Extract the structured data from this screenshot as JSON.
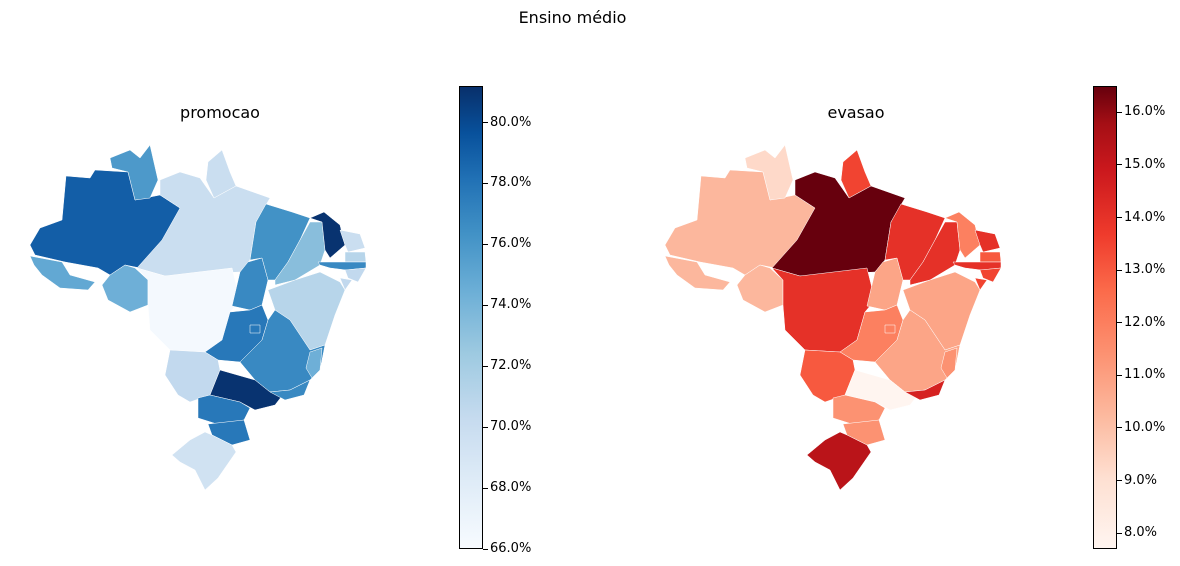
{
  "figure": {
    "title": "Ensino médio"
  },
  "panels": [
    {
      "title": "promocao",
      "colormap": "Blues",
      "min": 66.0,
      "max": 81.2,
      "ticks": [
        "66.0%",
        "68.0%",
        "70.0%",
        "72.0%",
        "74.0%",
        "76.0%",
        "78.0%",
        "80.0%"
      ]
    },
    {
      "title": "evasao",
      "colormap": "Reds",
      "min": 7.7,
      "max": 16.5,
      "ticks": [
        "8.0%",
        "9.0%",
        "10.0%",
        "11.0%",
        "12.0%",
        "13.0%",
        "14.0%",
        "15.0%",
        "16.0%"
      ]
    }
  ],
  "chart_data": [
    {
      "type": "choropleth",
      "title": "promocao",
      "unit": "%",
      "range": [
        66.0,
        81.2
      ],
      "regions": {
        "AM": 78.5,
        "RR": 75.0,
        "AP": 69.5,
        "PA": 69.5,
        "AC": 74.0,
        "RO": 73.5,
        "MT": 66.2,
        "TO": 76.0,
        "MA": 75.5,
        "PI": 72.5,
        "CE": 81.0,
        "RN": 69.5,
        "PB": 70.5,
        "PE": 76.0,
        "AL": 70.0,
        "SE": 70.0,
        "BA": 70.5,
        "GO": 77.0,
        "DF": 77.0,
        "MG": 76.0,
        "ES": 73.5,
        "MS": 70.0,
        "SP": 81.0,
        "RJ": 76.0,
        "PR": 77.0,
        "SC": 77.0,
        "RS": 69.0
      }
    },
    {
      "type": "choropleth",
      "title": "evasao",
      "unit": "%",
      "range": [
        7.7,
        16.5
      ],
      "regions": {
        "AM": 10.0,
        "RR": 9.0,
        "AP": 13.0,
        "PA": 16.5,
        "AC": 10.0,
        "RO": 10.0,
        "MT": 13.5,
        "TO": 10.5,
        "MA": 13.5,
        "PI": 13.5,
        "CE": 11.5,
        "RN": 13.5,
        "PB": 12.5,
        "PE": 13.5,
        "AL": 13.0,
        "SE": 13.0,
        "BA": 10.5,
        "GO": 11.5,
        "DF": 11.5,
        "MG": 10.5,
        "ES": 11.0,
        "MS": 12.5,
        "SP": 7.7,
        "RJ": 14.0,
        "PR": 11.0,
        "SC": 11.0,
        "RS": 14.8
      }
    }
  ]
}
